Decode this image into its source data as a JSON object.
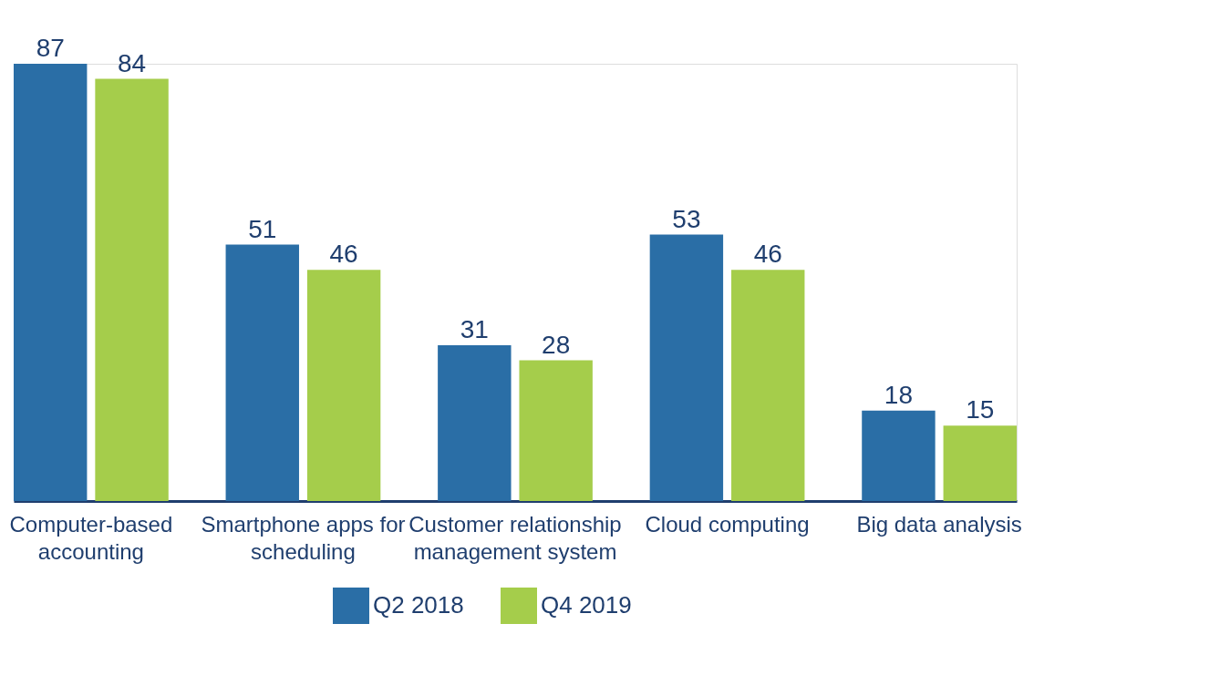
{
  "chart_data": {
    "type": "bar",
    "categories": [
      "Computer-based accounting",
      "Smartphone apps for scheduling",
      "Customer relationship management system",
      "Cloud computing",
      "Big data analysis"
    ],
    "series": [
      {
        "name": "Q2 2018",
        "color": "#2a6ea6",
        "values": [
          87,
          51,
          31,
          53,
          18
        ]
      },
      {
        "name": "Q4 2019",
        "color": "#a5cd4b",
        "values": [
          84,
          46,
          28,
          46,
          15
        ]
      }
    ],
    "data_labels": true,
    "legend": "bottom",
    "grid": false
  }
}
